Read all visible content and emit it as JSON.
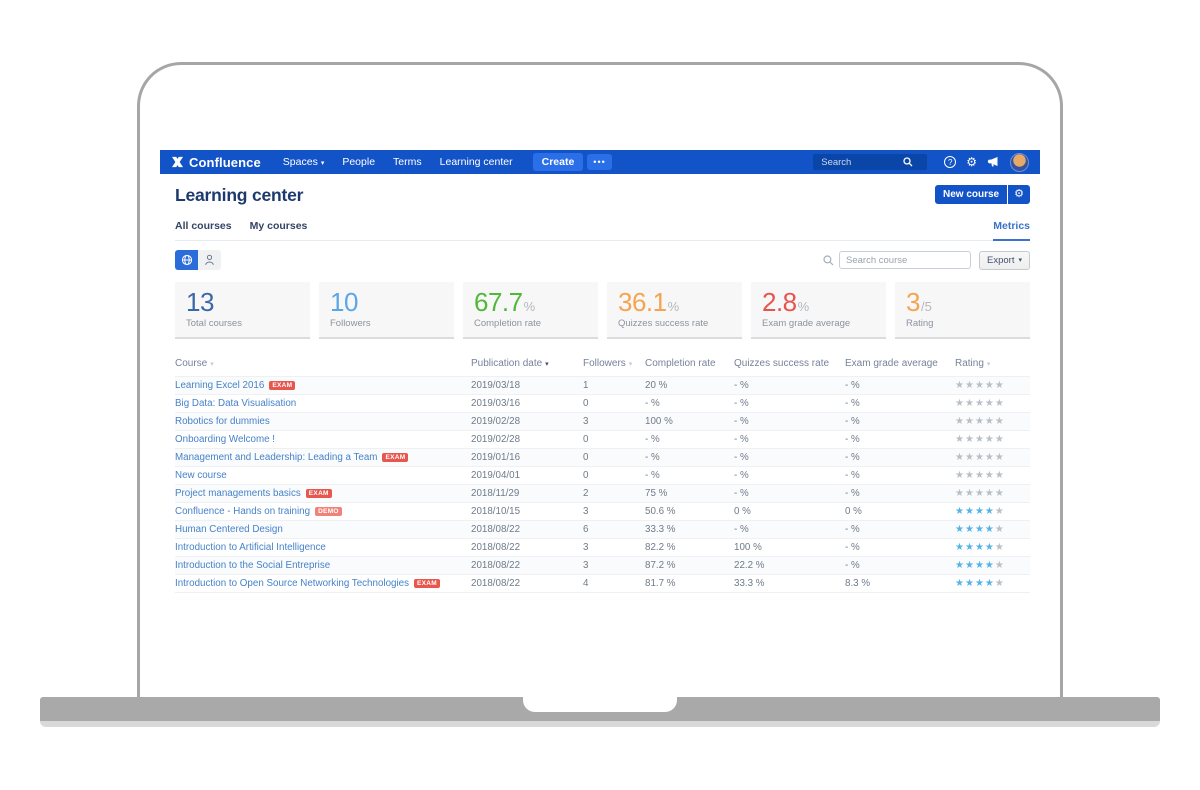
{
  "colors": {
    "navbar_bg": "#1353c8",
    "navbar_button": "#2a6fe8",
    "navbar_search_bg": "#0a45a8",
    "accent_blue": "#1353c8",
    "link_blue": "#4682c8",
    "metrics_blue": "#3b73c8",
    "toggle_active": "#2a6cd9",
    "star_filled": "#55b3e8",
    "star_empty": "#b8bfc7",
    "badge_exam": "#e8574e",
    "badge_demo": "#ef837c"
  },
  "icons": {
    "caret_down": "▾",
    "gear": "⚙",
    "question": "?",
    "star": "★",
    "dots": "•••"
  },
  "navbar": {
    "logo_text": "Confluence",
    "menu": [
      {
        "label": "Spaces",
        "caret": true
      },
      {
        "label": "People",
        "caret": false
      },
      {
        "label": "Terms",
        "caret": false
      },
      {
        "label": "Learning center",
        "caret": false
      }
    ],
    "create_label": "Create",
    "search_placeholder": "Search"
  },
  "header": {
    "title": "Learning center",
    "new_course_label": "New course"
  },
  "tabs": {
    "all_courses": "All courses",
    "my_courses": "My courses",
    "metrics": "Metrics"
  },
  "toolbar": {
    "search_placeholder": "Search course",
    "export_label": "Export"
  },
  "stats": [
    {
      "value": "13",
      "suffix": "",
      "label": "Total courses",
      "color": "#3a68a8"
    },
    {
      "value": "10",
      "suffix": "",
      "label": "Followers",
      "color": "#5aa7e8"
    },
    {
      "value": "67.7",
      "suffix": "%",
      "label": "Completion rate",
      "color": "#51b83a"
    },
    {
      "value": "36.1",
      "suffix": "%",
      "label": "Quizzes success rate",
      "color": "#f6a44f"
    },
    {
      "value": "2.8",
      "suffix": "%",
      "label": "Exam grade average",
      "color": "#e8544d"
    },
    {
      "value": "3",
      "suffix": "/5",
      "label": "Rating",
      "color": "#f6a44f"
    }
  ],
  "table": {
    "headers": [
      {
        "label": "Course",
        "sort": "light"
      },
      {
        "label": "Publication date",
        "sort": "dark"
      },
      {
        "label": "Followers",
        "sort": "light"
      },
      {
        "label": "Completion rate",
        "sort": null
      },
      {
        "label": "Quizzes success rate",
        "sort": null
      },
      {
        "label": "Exam grade average",
        "sort": null
      },
      {
        "label": "Rating",
        "sort": "light"
      }
    ],
    "rows": [
      {
        "course": "Learning Excel 2016",
        "badge": "EXAM",
        "date": "2019/03/18",
        "followers": "1",
        "completion": "20 %",
        "quizzes": "- %",
        "exam": "- %",
        "rating": 0
      },
      {
        "course": "Big Data: Data Visualisation",
        "badge": null,
        "date": "2019/03/16",
        "followers": "0",
        "completion": "- %",
        "quizzes": "- %",
        "exam": "- %",
        "rating": 0
      },
      {
        "course": "Robotics for dummies",
        "badge": null,
        "date": "2019/02/28",
        "followers": "3",
        "completion": "100 %",
        "quizzes": "- %",
        "exam": "- %",
        "rating": 0
      },
      {
        "course": "Onboarding Welcome !",
        "badge": null,
        "date": "2019/02/28",
        "followers": "0",
        "completion": "- %",
        "quizzes": "- %",
        "exam": "- %",
        "rating": 0
      },
      {
        "course": "Management and Leadership: Leading a Team",
        "badge": "EXAM",
        "date": "2019/01/16",
        "followers": "0",
        "completion": "- %",
        "quizzes": "- %",
        "exam": "- %",
        "rating": 0
      },
      {
        "course": "New course",
        "badge": null,
        "date": "2019/04/01",
        "followers": "0",
        "completion": "- %",
        "quizzes": "- %",
        "exam": "- %",
        "rating": 0
      },
      {
        "course": "Project managements basics",
        "badge": "EXAM",
        "date": "2018/11/29",
        "followers": "2",
        "completion": "75 %",
        "quizzes": "- %",
        "exam": "- %",
        "rating": 0
      },
      {
        "course": "Confluence - Hands on training",
        "badge": "DEMO",
        "date": "2018/10/15",
        "followers": "3",
        "completion": "50.6 %",
        "quizzes": "0 %",
        "exam": "0 %",
        "rating": 4
      },
      {
        "course": "Human Centered Design",
        "badge": null,
        "date": "2018/08/22",
        "followers": "6",
        "completion": "33.3 %",
        "quizzes": "- %",
        "exam": "- %",
        "rating": 4
      },
      {
        "course": "Introduction to Artificial Intelligence",
        "badge": null,
        "date": "2018/08/22",
        "followers": "3",
        "completion": "82.2 %",
        "quizzes": "100 %",
        "exam": "- %",
        "rating": 4
      },
      {
        "course": "Introduction to the Social Entreprise",
        "badge": null,
        "date": "2018/08/22",
        "followers": "3",
        "completion": "87.2 %",
        "quizzes": "22.2 %",
        "exam": "- %",
        "rating": 4
      },
      {
        "course": "Introduction to Open Source Networking Technologies",
        "badge": "EXAM",
        "date": "2018/08/22",
        "followers": "4",
        "completion": "81.7 %",
        "quizzes": "33.3 %",
        "exam": "8.3 %",
        "rating": 4
      }
    ]
  }
}
